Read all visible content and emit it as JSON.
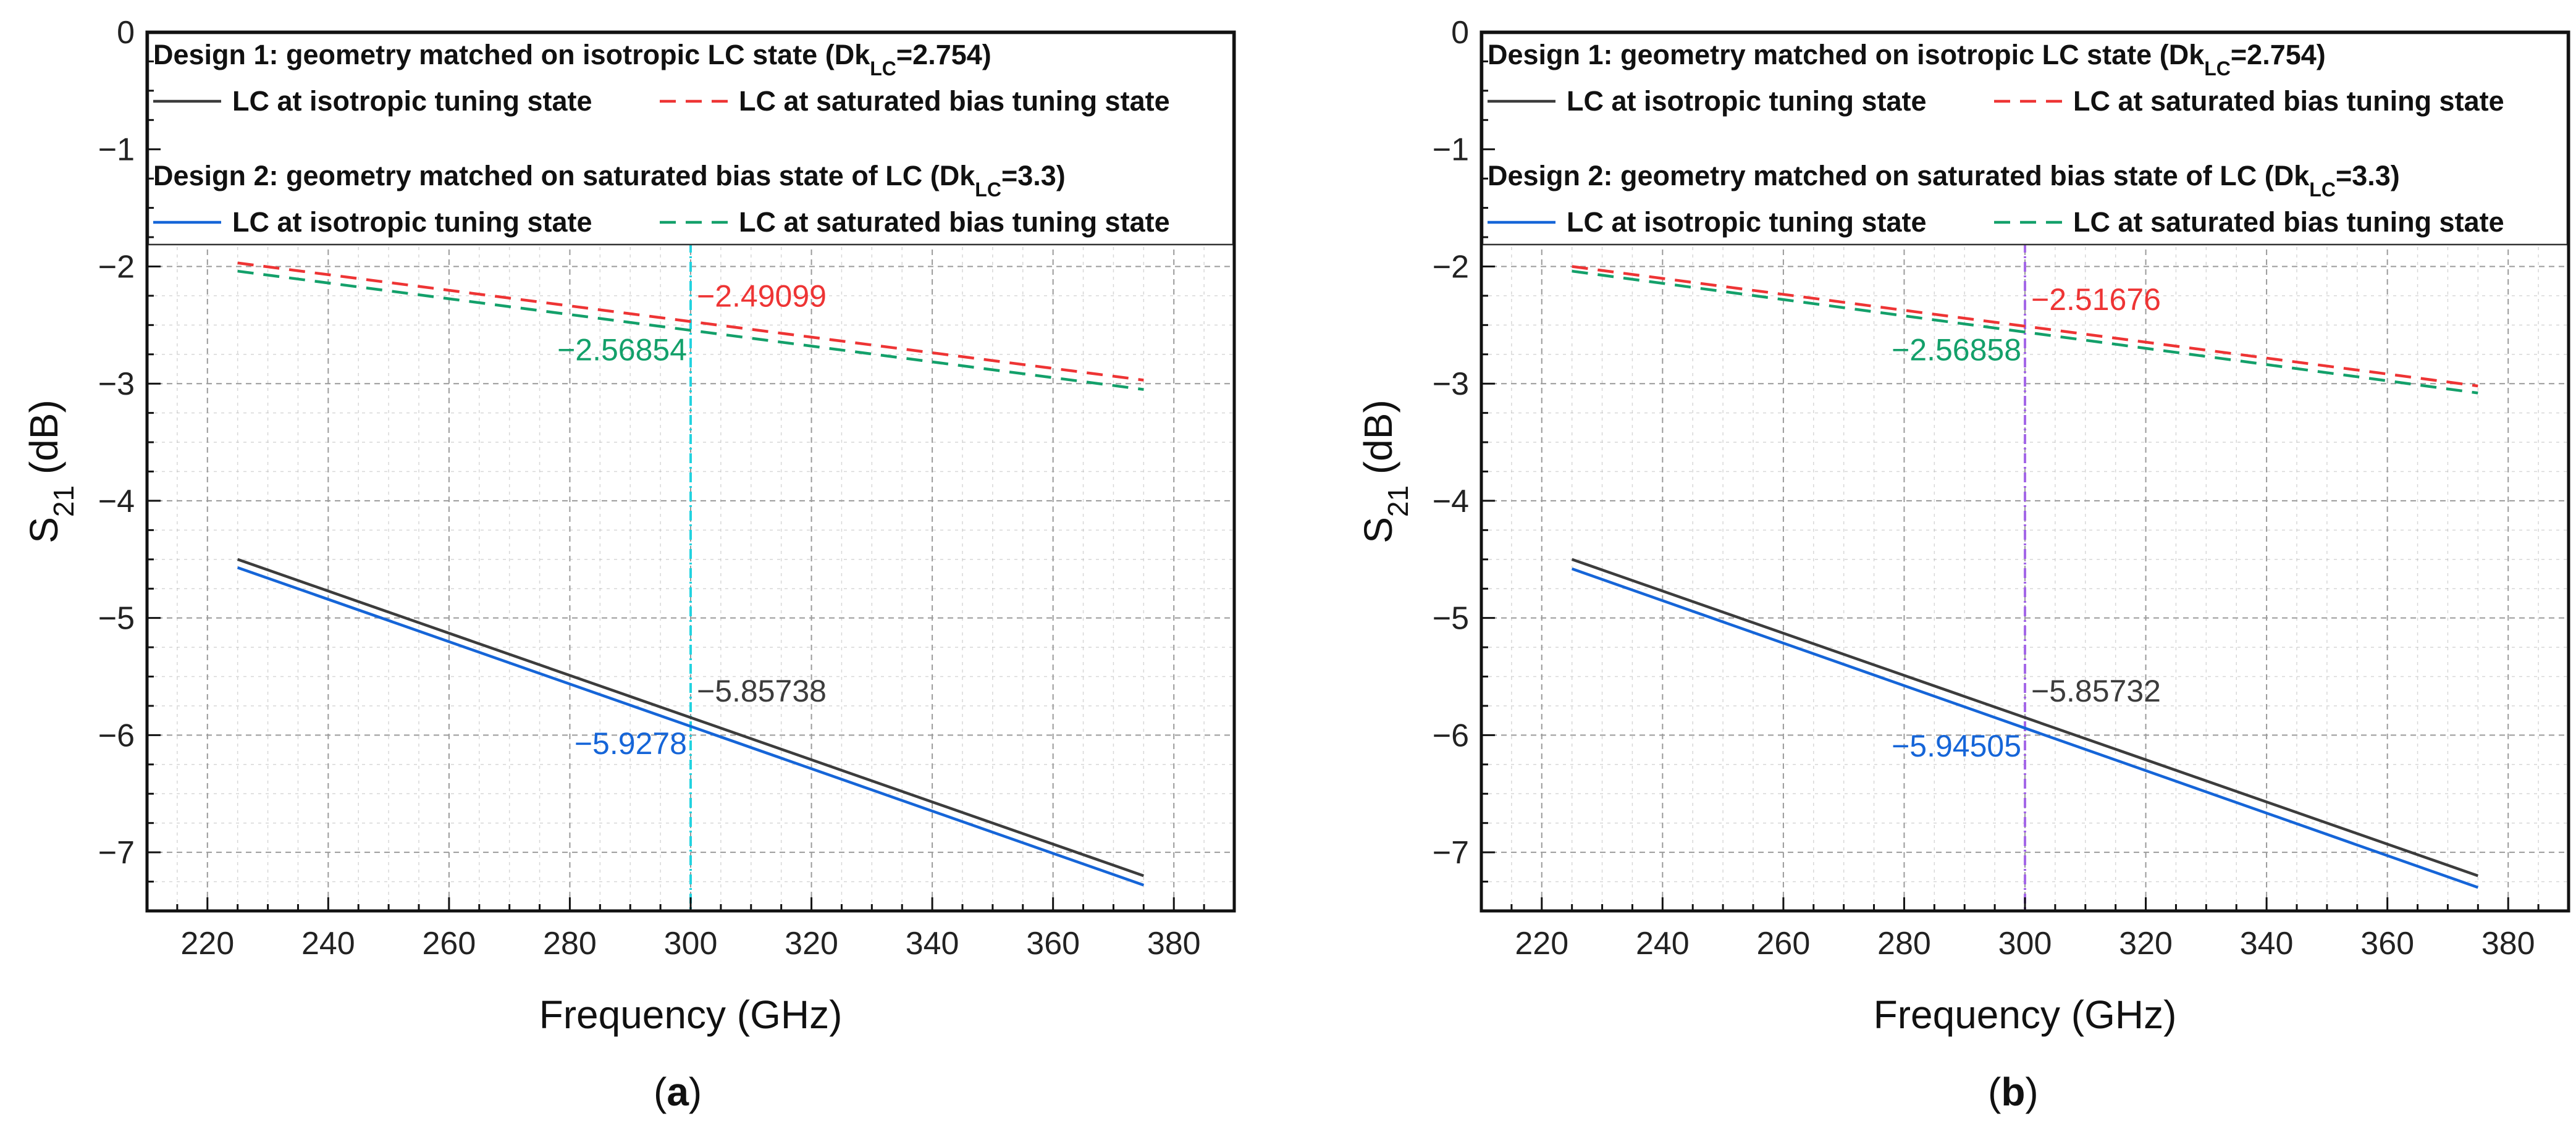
{
  "colors": {
    "black_line": "#3c3c3c",
    "red_line": "#ee3434",
    "blue_line": "#1565d8",
    "green_line": "#13a06a",
    "cursor_a": "#22d3e0",
    "cursor_b": "#a467e8",
    "grid": "#b8b8b8"
  },
  "legend": {
    "design1": {
      "prefix": "Design 1: geometry matched on isotropic LC state (Dk",
      "sub": "LC",
      "suffix": "=2.754)"
    },
    "design2": {
      "prefix": "Design 2: geometry matched on saturated bias state of LC (Dk",
      "sub": "LC",
      "suffix": "=3.3)"
    },
    "entries": {
      "iso1": "LC at isotropic tuning state",
      "sat1": "LC at saturated bias tuning state",
      "iso2": "LC at isotropic tuning state",
      "sat2": "LC at saturated bias tuning state"
    }
  },
  "chart_data": [
    {
      "type": "line",
      "panel_label": "a",
      "xlabel": "Frequency (GHz)",
      "ylabel_main": "S",
      "ylabel_sub": "21",
      "ylabel_unit": " (dB)",
      "xlim": [
        210,
        390
      ],
      "ylim": [
        -7.5,
        0
      ],
      "xticks": [
        220,
        240,
        260,
        280,
        300,
        320,
        340,
        360,
        380
      ],
      "yticks": [
        0,
        -1,
        -2,
        -3,
        -4,
        -5,
        -6,
        -7
      ],
      "cursor_x": 300,
      "series": [
        {
          "name": "Design 1 – LC at isotropic tuning state",
          "style": "solid",
          "color_key": "black_line",
          "x": [
            225,
            375
          ],
          "y": [
            -4.5,
            -7.2
          ]
        },
        {
          "name": "Design 1 – LC at saturated bias tuning state",
          "style": "dashed",
          "color_key": "red_line",
          "x": [
            225,
            375
          ],
          "y": [
            -1.97,
            -2.97
          ]
        },
        {
          "name": "Design 2 – LC at isotropic tuning state",
          "style": "solid",
          "color_key": "blue_line",
          "x": [
            225,
            375
          ],
          "y": [
            -4.57,
            -7.28
          ]
        },
        {
          "name": "Design 2 – LC at saturated bias tuning state",
          "style": "dashed",
          "color_key": "green_line",
          "x": [
            225,
            375
          ],
          "y": [
            -2.04,
            -3.05
          ]
        }
      ],
      "annotations": [
        {
          "text": "−2.49099",
          "color_key": "red_line",
          "x": 300,
          "y": -2.49,
          "side": "right"
        },
        {
          "text": "−2.56854",
          "color_key": "green_line",
          "x": 300,
          "y": -2.57,
          "side": "left"
        },
        {
          "text": "−5.85738",
          "color_key": "black_line",
          "x": 300,
          "y": -5.86,
          "side": "right"
        },
        {
          "text": "−5.9278",
          "color_key": "blue_line",
          "x": 300,
          "y": -5.93,
          "side": "left"
        }
      ]
    },
    {
      "type": "line",
      "panel_label": "b",
      "xlabel": "Frequency (GHz)",
      "ylabel_main": "S",
      "ylabel_sub": "21",
      "ylabel_unit": " (dB)",
      "xlim": [
        210,
        390
      ],
      "ylim": [
        -7.5,
        0
      ],
      "xticks": [
        220,
        240,
        260,
        280,
        300,
        320,
        340,
        360,
        380
      ],
      "yticks": [
        0,
        -1,
        -2,
        -3,
        -4,
        -5,
        -6,
        -7
      ],
      "cursor_x": 300,
      "series": [
        {
          "name": "Design 1 – LC at isotropic tuning state",
          "style": "solid",
          "color_key": "black_line",
          "x": [
            225,
            375
          ],
          "y": [
            -4.5,
            -7.2
          ]
        },
        {
          "name": "Design 1 – LC at saturated bias tuning state",
          "style": "dashed",
          "color_key": "red_line",
          "x": [
            225,
            375
          ],
          "y": [
            -2.0,
            -3.02
          ]
        },
        {
          "name": "Design 2 – LC at isotropic tuning state",
          "style": "solid",
          "color_key": "blue_line",
          "x": [
            225,
            375
          ],
          "y": [
            -4.58,
            -7.3
          ]
        },
        {
          "name": "Design 2 – LC at saturated bias tuning state",
          "style": "dashed",
          "color_key": "green_line",
          "x": [
            225,
            375
          ],
          "y": [
            -2.04,
            -3.08
          ]
        }
      ],
      "annotations": [
        {
          "text": "−2.51676",
          "color_key": "red_line",
          "x": 300,
          "y": -2.52,
          "side": "right"
        },
        {
          "text": "−2.56858",
          "color_key": "green_line",
          "x": 300,
          "y": -2.57,
          "side": "left"
        },
        {
          "text": "−5.85732",
          "color_key": "black_line",
          "x": 300,
          "y": -5.86,
          "side": "right"
        },
        {
          "text": "−5.94505",
          "color_key": "blue_line",
          "x": 300,
          "y": -5.95,
          "side": "left"
        }
      ]
    }
  ]
}
